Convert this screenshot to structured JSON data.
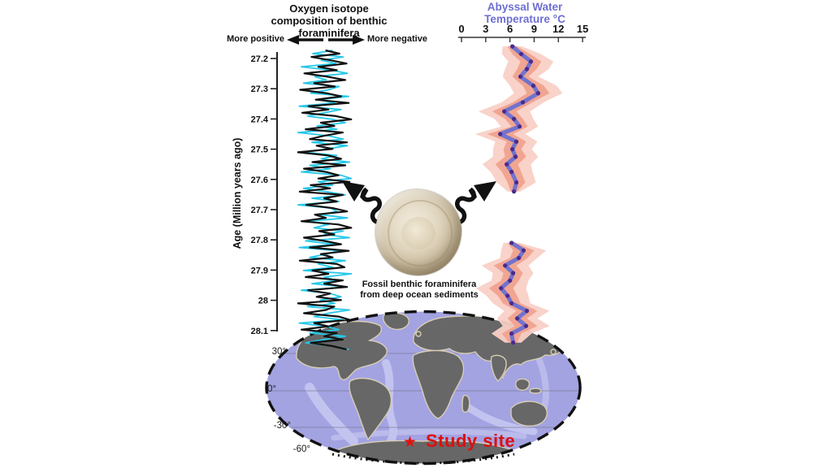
{
  "left_chart": {
    "title_lines": [
      "Oxygen isotope",
      "composition of benthic",
      "foraminifera"
    ],
    "more_positive": "More positive",
    "more_negative": "More negative",
    "y_axis_label": "Age (Million years ago)"
  },
  "right_chart": {
    "title_lines": [
      "Abyssal Water",
      "Temperature °C"
    ]
  },
  "fossil": {
    "caption_lines": [
      "Fossil benthic foraminifera",
      "from deep ocean sediments"
    ]
  },
  "map": {
    "lat_labels": [
      "30°",
      "0°",
      "-30°",
      "-60°"
    ],
    "study_site_label": "Study site",
    "ocean_color": "#a3a3e2",
    "land_color": "#676767",
    "ridge_color": "#c9c9f2"
  },
  "colors": {
    "isotope_black": "#111111",
    "isotope_cyan": "#25c8e8",
    "temp_line": "#7173cd",
    "temp_dot": "#4b2a8c",
    "band_inner": "#f0a28e",
    "band_outer": "#f9d0c6",
    "study_red": "#db1010",
    "title_purple": "#6e6ed2"
  },
  "chart_data": [
    {
      "type": "line",
      "title": "Oxygen isotope composition of benthic foraminifera",
      "orientation": "vertical-age-axis",
      "xlabel": "More positive (left) — More negative (right); no numeric scale shown",
      "ylabel": "Age (Million years ago)",
      "y_ticks": [
        27.2,
        27.3,
        27.4,
        27.5,
        27.6,
        27.7,
        27.8,
        27.9,
        28,
        28.1
      ],
      "y_range": [
        27.2,
        28.1
      ],
      "series": [
        {
          "name": "benthic d18O record (black)",
          "units": "relative (more positive to more negative)",
          "values": [
            0.05,
            0.38,
            -0.28,
            0.16,
            0.55,
            -0.12,
            0.32,
            -0.45,
            0.1,
            0.52,
            -0.22,
            0.27,
            -0.55,
            0.06,
            0.42,
            -0.18,
            0.6,
            -0.35,
            0.12,
            -0.5,
            0.3,
            0.66,
            -0.06,
            0.26,
            -0.42,
            0.46,
            0.02,
            -0.32,
            0.56,
            -0.16,
            0.22,
            -0.6,
            0.12,
            0.42,
            -0.26,
            0.52,
            -0.46,
            0.06,
            0.36,
            -0.12,
            0.62,
            -0.3,
            0.16,
            -0.56,
            0.46,
            0.02,
            0.32,
            -0.4,
            0.22,
            0.56,
            -0.2,
            0.06,
            -0.52,
            0.36,
            0.66,
            -0.1,
            0.26,
            -0.46,
            0.02,
            0.42,
            -0.32,
            0.6,
            -0.06,
            0.22,
            -0.56,
            0.32,
            0.5,
            -0.26,
            0.12,
            -0.42,
            0.46,
            0.02,
            0.56,
            -0.36,
            0.16,
            -0.16,
            0.42,
            -0.6,
            0.26,
            0.06,
            -0.46,
            0.36,
            0.62,
            -0.22,
            0.12,
            -0.52,
            0.32,
            0.02,
            0.46,
            -0.3,
            0.22,
            0.55
          ]
        },
        {
          "name": "benthic d18O record (cyan)",
          "units": "relative (more positive to more negative)",
          "values": [
            0.22,
            -0.25,
            0.47,
            -0.05,
            0.3,
            -0.52,
            0.17,
            0.57,
            -0.2,
            0.07,
            -0.47,
            0.37,
            0.12,
            -0.3,
            0.6,
            -0.1,
            0.27,
            -0.57,
            0.42,
            0.02,
            -0.37,
            0.22,
            0.52,
            -0.15,
            0.32,
            -0.6,
            0.12,
            0.47,
            -0.27,
            0.57,
            0.07,
            -0.42,
            0.32,
            -0.05,
            0.62,
            -0.32,
            0.17,
            -0.52,
            0.42,
            0.66,
            -0.12,
            0.22,
            -0.47,
            0.07,
            0.52,
            -0.27,
            0.37,
            -0.6,
            0.17,
            0.32,
            -0.07,
            0.57,
            -0.37,
            0.12,
            -0.22,
            0.47,
            0.02,
            0.62,
            -0.42,
            0.27,
            -0.57,
            0.37,
            0.07,
            -0.32,
            0.52,
            -0.12,
            0.22,
            -0.47,
            0.66,
            0.02,
            0.32,
            -0.27,
            0.57,
            -0.52,
            0.17,
            0.42,
            -0.07,
            0.27,
            -0.37,
            0.62,
            0.12,
            -0.22,
            0.47,
            -0.57,
            0.07,
            0.37,
            -0.32,
            0.52,
            0.02,
            -0.42,
            0.22,
            0.6
          ]
        }
      ]
    },
    {
      "type": "line",
      "title": "Abyssal Water Temperature °C",
      "x_ticks": [
        0,
        3,
        6,
        9,
        12,
        15
      ],
      "x_range": [
        0,
        15
      ],
      "xlabel": "Temperature °C (top axis)",
      "ylabel": "Age (Million years ago, shared with left chart)",
      "segments": [
        {
          "ages": [
            27.16,
            27.185,
            27.21,
            27.235,
            27.26,
            27.29,
            27.315,
            27.345,
            27.375,
            27.4,
            27.425,
            27.45,
            27.475,
            27.5,
            27.525,
            27.55,
            27.575,
            27.61,
            27.64
          ],
          "temps": [
            6.3,
            7.4,
            8.6,
            8.1,
            7.3,
            8.9,
            9.5,
            7.6,
            5.3,
            6.5,
            7.2,
            4.8,
            6.8,
            6.3,
            6.7,
            5.6,
            6.2,
            6.8,
            6.5
          ],
          "inner_halfwidth": [
            0.6,
            1.1,
            1.3,
            1.2,
            1.0,
            1.3,
            1.4,
            1.2,
            1.5,
            1.1,
            1.0,
            1.6,
            1.2,
            1.1,
            1.3,
            1.4,
            1.2,
            1.1,
            0.4
          ],
          "outer_halfwidth": [
            1.2,
            2.4,
            2.8,
            2.7,
            2.2,
            2.9,
            3.0,
            2.6,
            3.2,
            2.4,
            2.3,
            3.1,
            2.6,
            2.4,
            2.8,
            3.0,
            2.6,
            2.4,
            0.8
          ]
        },
        {
          "ages": [
            27.81,
            27.835,
            27.86,
            27.885,
            27.91,
            27.935,
            27.96,
            27.985,
            28.01,
            28.035,
            28.06,
            28.085,
            28.11,
            28.14
          ],
          "temps": [
            6.2,
            7.7,
            7.1,
            5.4,
            6.4,
            6.0,
            4.9,
            5.7,
            6.2,
            8.1,
            6.9,
            8.0,
            6.2,
            6.4
          ],
          "inner_halfwidth": [
            0.5,
            1.3,
            1.1,
            1.4,
            1.2,
            1.1,
            1.5,
            1.2,
            1.1,
            1.3,
            1.2,
            1.4,
            1.2,
            0.5
          ],
          "outer_halfwidth": [
            1.0,
            2.8,
            2.3,
            2.9,
            2.5,
            2.3,
            3.1,
            2.6,
            2.3,
            2.8,
            2.5,
            2.9,
            2.5,
            1.0
          ]
        }
      ]
    }
  ]
}
